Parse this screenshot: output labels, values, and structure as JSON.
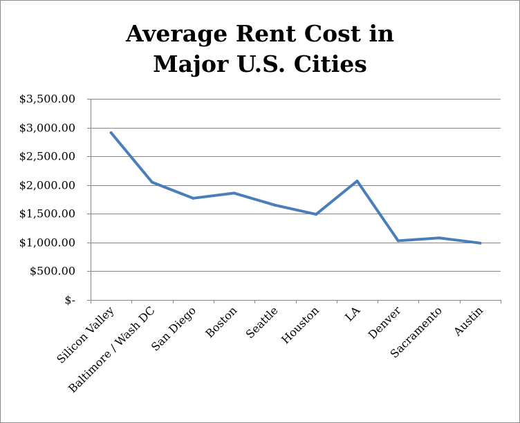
{
  "chart_data": {
    "type": "line",
    "title_lines": [
      "Average Rent Cost in",
      "Major U.S. Cities"
    ],
    "categories": [
      "Silicon Valley",
      "Baltimore / Wash DC",
      "San Diego",
      "Boston",
      "Seattle",
      "Houston",
      "LA",
      "Denver",
      "Sacramento",
      "Austin"
    ],
    "values": [
      2910,
      2050,
      1770,
      1860,
      1650,
      1490,
      2070,
      1030,
      1080,
      990
    ],
    "y_ticks": [
      0,
      500,
      1000,
      1500,
      2000,
      2500,
      3000,
      3500
    ],
    "y_tick_labels": [
      "$-",
      "$500.00",
      "$1,000.00",
      "$1,500.00",
      "$2,000.00",
      "$2,500.00",
      "$3,000.00",
      "$3,500.00"
    ],
    "ylim": [
      0,
      3500
    ],
    "grid": true,
    "legend": "none",
    "line_color": "#4a7ebb",
    "grid_color": "#868686"
  }
}
